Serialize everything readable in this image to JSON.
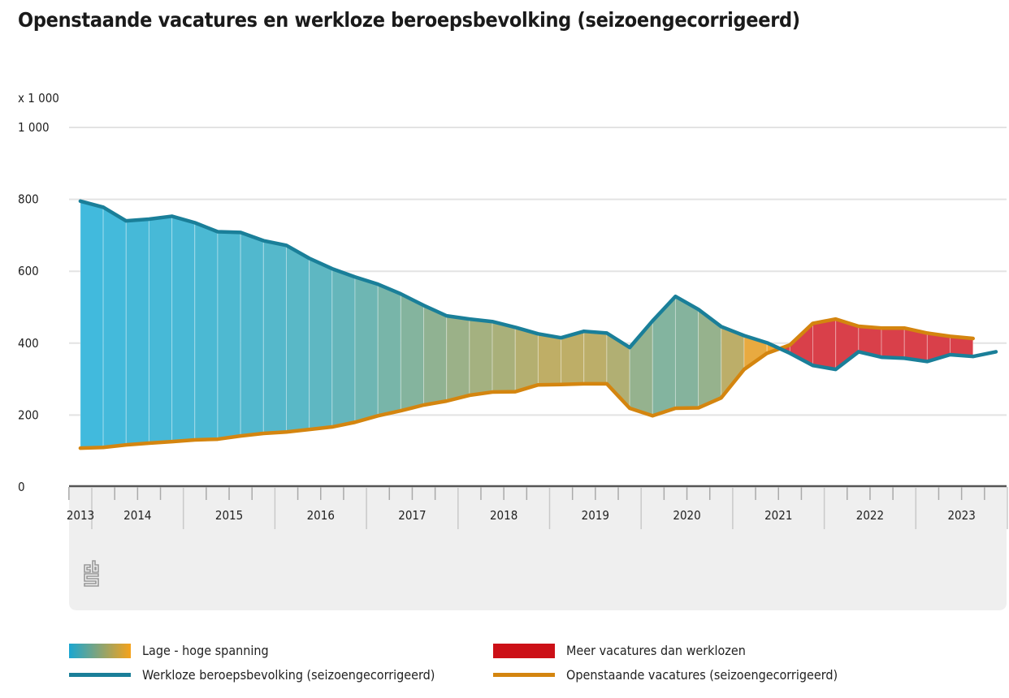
{
  "title": "Openstaande vacatures en werkloze beroepsbevolking (seizoengecorrigeerd)",
  "logo_text": "cbs",
  "colors": {
    "werkloze_line": "#1a7f99",
    "vacatures_line": "#d4850f",
    "low_tension": "#3fbadf",
    "high_tension": "#f3a935",
    "more_vacancies": "#d9404a",
    "axis_panel": "#efefef"
  },
  "legend": [
    {
      "label": "Lage - hoge spanning",
      "kind": "gradient"
    },
    {
      "label": "Meer vacatures dan werklozen",
      "kind": "swatch",
      "color": "#cc1017"
    },
    {
      "label": "Werkloze beroepsbevolking (seizoengecorrigeerd)",
      "kind": "line",
      "color": "#1a7f99"
    },
    {
      "label": "Openstaande vacatures (seizoengecorrigeerd)",
      "kind": "line",
      "color": "#d4850f"
    }
  ],
  "chart_data": {
    "type": "area",
    "title": "Openstaande vacatures en werkloze beroepsbevolking (seizoengecorrigeerd)",
    "unit_label": "x 1 000",
    "ylim": [
      0,
      1000
    ],
    "y_ticks": [
      0,
      200,
      400,
      600,
      800,
      1000
    ],
    "y_tick_labels": [
      "0",
      "200",
      "400",
      "600",
      "800",
      "1 000"
    ],
    "x_tick_labels": [
      "2013",
      "2014",
      "2015",
      "2016",
      "2017",
      "2018",
      "2019",
      "2020",
      "2021",
      "2022",
      "2023"
    ],
    "grid": true,
    "legend_position": "bottom",
    "x": [
      "2013Q4",
      "2014Q1",
      "2014Q2",
      "2014Q3",
      "2014Q4",
      "2015Q1",
      "2015Q2",
      "2015Q3",
      "2015Q4",
      "2016Q1",
      "2016Q2",
      "2016Q3",
      "2016Q4",
      "2017Q1",
      "2017Q2",
      "2017Q3",
      "2017Q4",
      "2018Q1",
      "2018Q2",
      "2018Q3",
      "2018Q4",
      "2019Q1",
      "2019Q2",
      "2019Q3",
      "2019Q4",
      "2020Q1",
      "2020Q2",
      "2020Q3",
      "2020Q4",
      "2021Q1",
      "2021Q2",
      "2021Q3",
      "2021Q4",
      "2022Q1",
      "2022Q2",
      "2022Q3",
      "2022Q4",
      "2023Q1",
      "2023Q2",
      "2023Q3",
      "2023Q4"
    ],
    "series": [
      {
        "name": "Werkloze beroepsbevolking (seizoengecorrigeerd)",
        "values": [
          795,
          778,
          740,
          745,
          753,
          735,
          710,
          708,
          685,
          672,
          636,
          607,
          584,
          564,
          537,
          505,
          476,
          467,
          460,
          444,
          426,
          415,
          433,
          428,
          388,
          462,
          530,
          494,
          446,
          421,
          401,
          372,
          338,
          327,
          376,
          361,
          358,
          349,
          368,
          363,
          376
        ]
      },
      {
        "name": "Openstaande vacatures (seizoengecorrigeerd)",
        "values": [
          108,
          110,
          117,
          122,
          126,
          131,
          133,
          142,
          149,
          153,
          160,
          167,
          180,
          198,
          212,
          228,
          239,
          255,
          264,
          265,
          284,
          285,
          287,
          287,
          219,
          198,
          219,
          220,
          248,
          327,
          372,
          395,
          455,
          467,
          447,
          442,
          442,
          428,
          419,
          413,
          null
        ]
      }
    ]
  }
}
